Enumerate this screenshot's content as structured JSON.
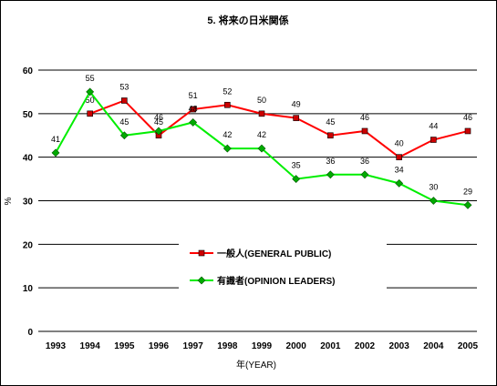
{
  "chart_data": {
    "type": "line",
    "title": "5. 将来の日米関係",
    "xlabel": "年(YEAR)",
    "ylabel": "%",
    "ylim": [
      0,
      60
    ],
    "yticks": [
      0,
      10,
      20,
      30,
      40,
      50,
      60
    ],
    "categories": [
      "1993",
      "1994",
      "1995",
      "1996",
      "1997",
      "1998",
      "1999",
      "2000",
      "2001",
      "2002",
      "2003",
      "2004",
      "2005"
    ],
    "grid": "horizontal",
    "legend_position": "center-bottom",
    "series": [
      {
        "name": "一般人(GENERAL PUBLIC)",
        "color": "#ff0000",
        "marker": "square",
        "marker_color": "#cc0000",
        "values": [
          null,
          50,
          53,
          45,
          51,
          52,
          50,
          49,
          45,
          46,
          40,
          44,
          46
        ]
      },
      {
        "name": "有識者(OPINION LEADERS)",
        "color": "#00ee00",
        "marker": "diamond",
        "marker_color": "#00aa00",
        "values": [
          41,
          55,
          45,
          46,
          48,
          42,
          42,
          35,
          36,
          36,
          34,
          30,
          29
        ]
      }
    ]
  }
}
